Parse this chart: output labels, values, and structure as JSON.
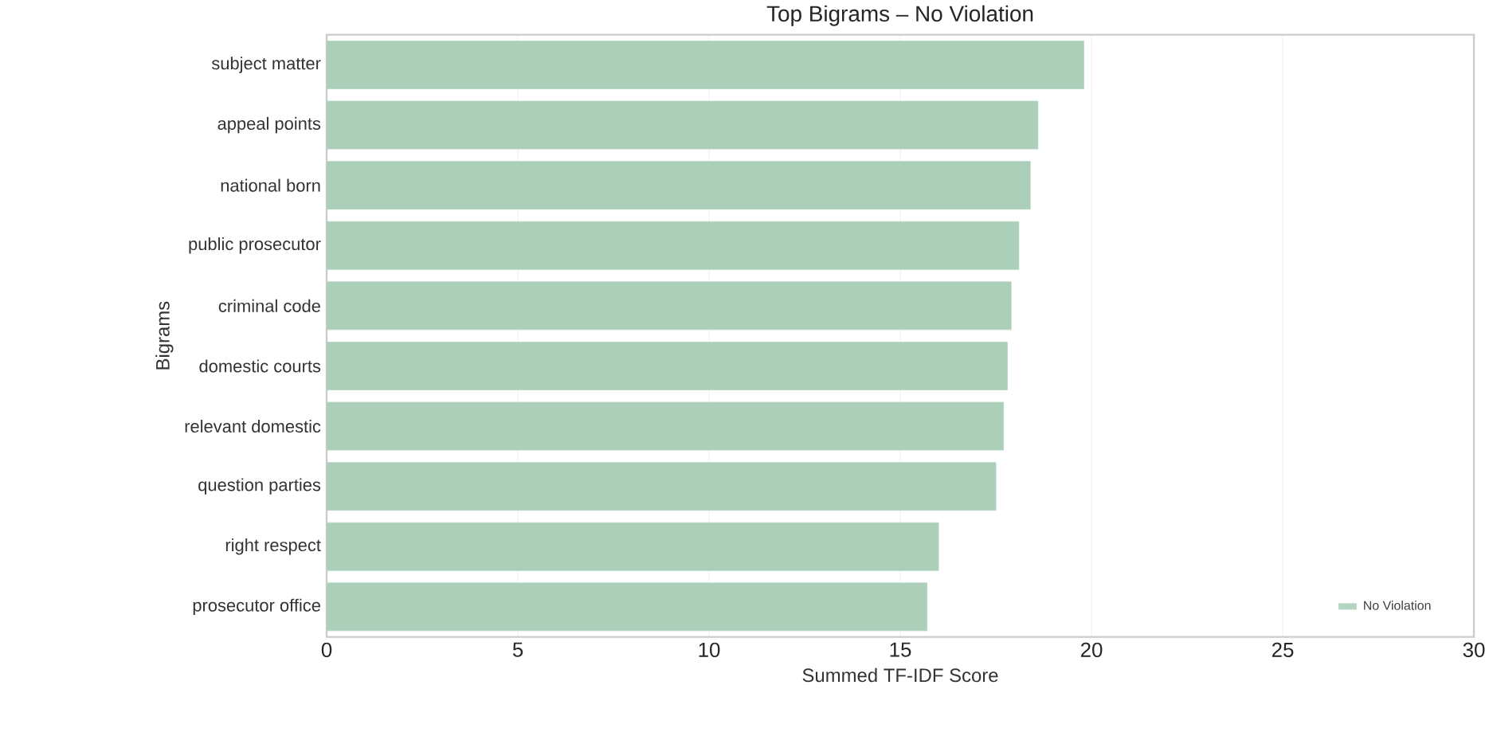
{
  "chart_data": {
    "type": "bar",
    "orientation": "horizontal",
    "title": "Top Bigrams – No Violation",
    "xlabel": "Summed TF-IDF Score",
    "ylabel": "Bigrams",
    "categories": [
      "subject matter",
      "appeal points",
      "national born",
      "public prosecutor",
      "criminal code",
      "domestic courts",
      "relevant domestic",
      "question parties",
      "right respect",
      "prosecutor office"
    ],
    "series": [
      {
        "name": "No Violation",
        "color": "#abcfb9",
        "values": [
          19.8,
          18.6,
          18.4,
          18.1,
          17.9,
          17.8,
          17.7,
          17.5,
          16.0,
          15.7
        ]
      }
    ],
    "xlim": [
      0,
      30
    ],
    "xticks": [
      0,
      5,
      10,
      15,
      20,
      25,
      30
    ],
    "grid": "x",
    "legend": "bottom right"
  }
}
